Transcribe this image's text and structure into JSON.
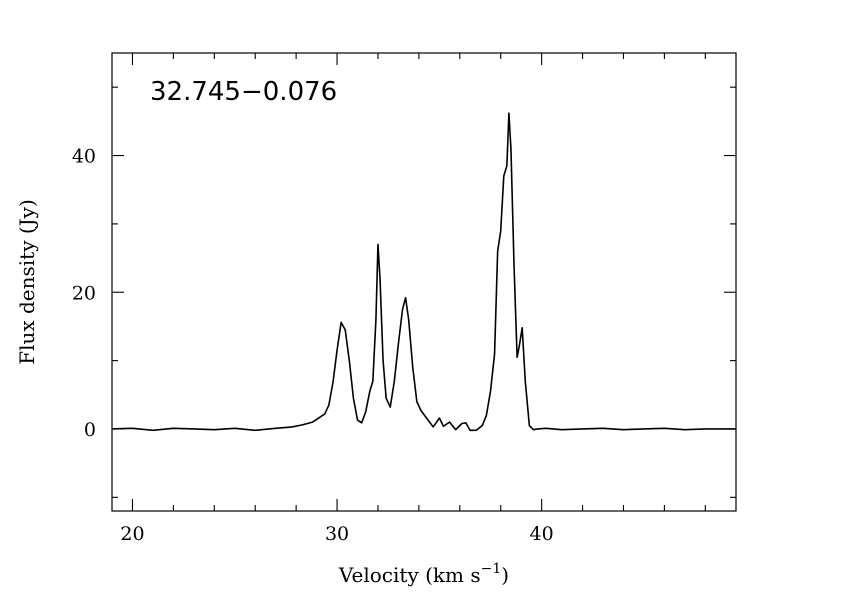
{
  "chart_data": {
    "type": "line",
    "title": "",
    "annotation": "32.745−0.076",
    "xlabel": "Velocity (km s",
    "xlabel_sup": "−1",
    "xlabel_close": ")",
    "ylabel": "Flux density (Jy)",
    "xlim": [
      19,
      49.5
    ],
    "ylim": [
      -12,
      55
    ],
    "x_ticks": [
      20,
      30,
      40
    ],
    "x_tick_labels": [
      "20",
      "30",
      "40"
    ],
    "y_ticks": [
      0,
      20,
      40
    ],
    "y_tick_labels": [
      "0",
      "20",
      "40"
    ],
    "x_minor_step": 2,
    "y_minor_step": 10,
    "grid": false,
    "series": [
      {
        "x": [
          19.0,
          20.0,
          21.0,
          22.0,
          23.0,
          24.0,
          25.0,
          26.0,
          27.0,
          27.8,
          28.3,
          28.8,
          29.0,
          29.2,
          29.4,
          29.6,
          29.8,
          30.0,
          30.2,
          30.4,
          30.6,
          30.8,
          31.0,
          31.2,
          31.4,
          31.6,
          31.75,
          31.9,
          32.0,
          32.1,
          32.25,
          32.4,
          32.6,
          32.8,
          33.0,
          33.2,
          33.35,
          33.5,
          33.7,
          33.9,
          34.1,
          34.4,
          34.7,
          35.0,
          35.2,
          35.5,
          35.8,
          36.1,
          36.3,
          36.5,
          36.8,
          37.1,
          37.3,
          37.5,
          37.7,
          37.85,
          38.0,
          38.15,
          38.3,
          38.4,
          38.5,
          38.65,
          38.8,
          38.9,
          39.05,
          39.2,
          39.4,
          39.6,
          39.8,
          40.2,
          41.0,
          42.0,
          43.0,
          44.0,
          45.0,
          46.0,
          47.0,
          48.0,
          49.5
        ],
        "y": [
          0.0,
          0.1,
          -0.2,
          0.1,
          0.0,
          -0.1,
          0.1,
          -0.2,
          0.1,
          0.3,
          0.6,
          1.0,
          1.4,
          1.8,
          2.2,
          3.5,
          6.8,
          11.5,
          15.6,
          14.5,
          10.0,
          4.5,
          1.3,
          0.9,
          2.5,
          5.5,
          7.0,
          16.0,
          27.0,
          22.0,
          10.0,
          4.5,
          3.2,
          7.0,
          12.5,
          17.5,
          19.2,
          16.0,
          9.0,
          4.0,
          2.7,
          1.5,
          0.3,
          1.6,
          0.4,
          1.0,
          -0.1,
          0.8,
          0.9,
          -0.2,
          -0.2,
          0.5,
          2.0,
          5.5,
          11.0,
          26.0,
          29.0,
          37.0,
          38.5,
          46.2,
          41.0,
          24.0,
          10.5,
          12.0,
          14.8,
          7.0,
          0.5,
          -0.1,
          0.0,
          0.1,
          -0.1,
          0.0,
          0.1,
          -0.1,
          0.0,
          0.1,
          -0.1,
          0.0,
          0.0
        ]
      }
    ]
  }
}
